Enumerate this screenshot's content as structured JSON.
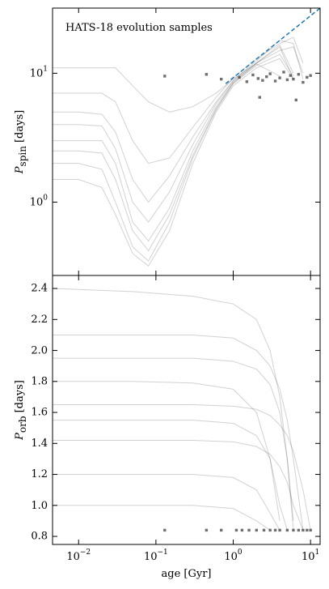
{
  "chart_data": [
    {
      "type": "line",
      "title": "HATS-18 evolution samples",
      "ylabel": {
        "text": "P",
        "sub": "spin",
        "unit": "[days]"
      },
      "xscale": "log",
      "yscale": "log",
      "xlim": [
        0.0046,
        13.3
      ],
      "ylim": [
        0.27,
        32
      ],
      "xticks": [
        {
          "value": 0.01,
          "label": "10",
          "exponent": "−2"
        },
        {
          "value": 0.1,
          "label": "10",
          "exponent": "−1"
        },
        {
          "value": 1,
          "label": "10",
          "exponent": "0"
        },
        {
          "value": 10,
          "label": "10",
          "exponent": "1"
        }
      ],
      "yticks": [
        {
          "value": 1,
          "label": "10",
          "exponent": "0"
        },
        {
          "value": 10,
          "label": "10",
          "exponent": "1"
        }
      ],
      "line_color": "#000000",
      "line_alpha": 0.18,
      "series": [
        {
          "x": [
            0.0046,
            0.01,
            0.02,
            0.03,
            0.05,
            0.08,
            0.15,
            0.3,
            0.6,
            1,
            2,
            4,
            6,
            8
          ],
          "values": [
            3.0,
            3.0,
            3.0,
            2.0,
            0.7,
            0.5,
            0.9,
            2.5,
            5.5,
            8.5,
            12,
            16,
            9,
            null
          ]
        },
        {
          "x": [
            0.0046,
            0.01,
            0.02,
            0.03,
            0.05,
            0.08,
            0.15,
            0.3,
            0.6,
            1,
            2,
            4,
            6,
            8
          ],
          "values": [
            5.0,
            5.0,
            4.8,
            3.5,
            1.5,
            1.0,
            1.6,
            3.2,
            6.0,
            8.8,
            12.5,
            18,
            17,
            9
          ]
        },
        {
          "x": [
            0.0046,
            0.01,
            0.02,
            0.03,
            0.05,
            0.08,
            0.15,
            0.3,
            0.6,
            1,
            2,
            4,
            6,
            8
          ],
          "values": [
            11,
            11,
            11,
            11,
            8,
            6,
            5,
            5.5,
            7,
            9,
            12,
            15,
            16,
            10
          ]
        },
        {
          "x": [
            0.0046,
            0.01,
            0.02,
            0.03,
            0.05,
            0.08,
            0.15,
            0.3,
            0.6,
            1,
            2,
            4,
            6,
            8
          ],
          "values": [
            2.0,
            2.0,
            1.8,
            1.0,
            0.45,
            0.35,
            0.7,
            2.2,
            5.2,
            8.3,
            11.5,
            14,
            9.5,
            null
          ]
        },
        {
          "x": [
            0.0046,
            0.01,
            0.02,
            0.03,
            0.05,
            0.08,
            0.15,
            0.3,
            0.6,
            1,
            2,
            4,
            6,
            8
          ],
          "values": [
            1.5,
            1.5,
            1.3,
            0.8,
            0.4,
            0.32,
            0.6,
            2.0,
            5.0,
            8.0,
            11,
            13,
            9,
            null
          ]
        },
        {
          "x": [
            0.0046,
            0.01,
            0.02,
            0.03,
            0.05,
            0.08,
            0.15,
            0.3,
            0.6,
            1,
            2,
            4,
            6,
            8
          ],
          "values": [
            7,
            7,
            7,
            6,
            3,
            2,
            2.2,
            3.8,
            6.5,
            9.2,
            13,
            17,
            19,
            12
          ]
        },
        {
          "x": [
            0.0046,
            0.01,
            0.02,
            0.03,
            0.05,
            0.08,
            0.15,
            0.3,
            0.6,
            1,
            2,
            4,
            6,
            8
          ],
          "values": [
            4,
            4,
            3.9,
            2.6,
            1.0,
            0.7,
            1.2,
            2.8,
            5.8,
            8.7,
            12,
            16.5,
            10,
            null
          ]
        },
        {
          "x": [
            0.0046,
            0.01,
            0.02,
            0.03,
            0.05,
            0.08,
            0.15,
            0.3,
            0.6,
            1,
            2,
            4,
            6,
            8
          ],
          "values": [
            2.5,
            2.5,
            2.4,
            1.5,
            0.6,
            0.42,
            0.8,
            2.3,
            5.3,
            8.4,
            11.8,
            9.5,
            null,
            null
          ]
        }
      ],
      "points": {
        "color": "#333333",
        "x": [
          0.13,
          0.45,
          0.7,
          1.2,
          1.5,
          1.8,
          2.1,
          2.4,
          2.7,
          3.0,
          3.5,
          4.0,
          4.5,
          5.0,
          5.5,
          6.0,
          7.0,
          8.0,
          9.0,
          10.0,
          2.2,
          6.5
        ],
        "values": [
          9.5,
          9.8,
          9.0,
          9.3,
          8.6,
          9.7,
          9.1,
          8.8,
          9.4,
          9.9,
          8.7,
          9.2,
          10.2,
          8.9,
          9.6,
          9.0,
          9.8,
          8.5,
          9.3,
          9.6,
          6.5,
          6.2
        ]
      },
      "reference": {
        "color": "#1f77b4",
        "x": [
          0.8,
          13.3
        ],
        "values": [
          8.3,
          32
        ]
      }
    },
    {
      "type": "line",
      "xlabel": "age [Gyr]",
      "ylabel": {
        "text": "P",
        "sub": "orb",
        "unit": "[days]"
      },
      "xscale": "log",
      "yscale": "linear",
      "xlim": [
        0.0046,
        13.3
      ],
      "ylim": [
        0.748,
        2.484
      ],
      "xticks": [
        {
          "value": 0.01,
          "label": "10",
          "exponent": "−2"
        },
        {
          "value": 0.1,
          "label": "10",
          "exponent": "−1"
        },
        {
          "value": 1,
          "label": "10",
          "exponent": "0"
        },
        {
          "value": 10,
          "label": "10",
          "exponent": "1"
        }
      ],
      "yticks": [
        0.8,
        {
          "value": 1,
          "label": "1.0"
        },
        1.2,
        1.4,
        1.6,
        1.8,
        {
          "value": 2,
          "label": "2.0"
        },
        2.2,
        2.4
      ],
      "line_color": "#000000",
      "line_alpha": 0.18,
      "series": [
        {
          "x": [
            0.0046,
            0.05,
            0.3,
            1,
            2,
            3,
            4,
            5,
            6,
            8,
            10
          ],
          "values": [
            2.4,
            2.38,
            2.35,
            2.3,
            2.2,
            2.0,
            1.7,
            1.3,
            0.84,
            null,
            null
          ]
        },
        {
          "x": [
            0.0046,
            0.05,
            0.3,
            1,
            2,
            3,
            4,
            5,
            6,
            8,
            10
          ],
          "values": [
            1.95,
            1.95,
            1.95,
            1.93,
            1.88,
            1.78,
            1.6,
            1.3,
            0.9,
            null,
            null
          ]
        },
        {
          "x": [
            0.0046,
            0.05,
            0.3,
            1,
            2,
            3,
            4,
            5,
            6,
            8,
            10
          ],
          "values": [
            1.55,
            1.55,
            1.55,
            1.53,
            1.45,
            1.3,
            1.0,
            0.84,
            null,
            null,
            null
          ]
        },
        {
          "x": [
            0.0046,
            0.05,
            0.3,
            1,
            2,
            3,
            4,
            5,
            6,
            8,
            10
          ],
          "values": [
            1.8,
            1.8,
            1.79,
            1.75,
            1.6,
            1.3,
            0.9,
            null,
            null,
            null,
            null
          ]
        },
        {
          "x": [
            0.0046,
            0.05,
            0.3,
            1,
            2,
            3,
            4,
            5,
            6,
            8,
            10
          ],
          "values": [
            1.42,
            1.42,
            1.42,
            1.41,
            1.38,
            1.33,
            1.25,
            1.15,
            1.0,
            0.84,
            null
          ]
        },
        {
          "x": [
            0.0046,
            0.05,
            0.3,
            1,
            2,
            3,
            4,
            5,
            6,
            8,
            10
          ],
          "values": [
            1.2,
            1.2,
            1.2,
            1.18,
            1.1,
            0.95,
            0.84,
            null,
            null,
            null,
            null
          ]
        },
        {
          "x": [
            0.0046,
            0.05,
            0.3,
            1,
            2,
            3,
            4,
            5,
            6,
            8,
            10
          ],
          "values": [
            2.1,
            2.1,
            2.1,
            2.08,
            2.0,
            1.9,
            1.75,
            1.55,
            1.3,
            0.84,
            null
          ]
        },
        {
          "x": [
            0.0046,
            0.05,
            0.3,
            1,
            2,
            3,
            4,
            5,
            6,
            8,
            10
          ],
          "values": [
            1.0,
            1.0,
            1.0,
            0.98,
            0.9,
            0.84,
            null,
            null,
            null,
            null,
            null
          ]
        },
        {
          "x": [
            0.0046,
            0.05,
            0.3,
            1,
            2,
            3,
            4,
            5,
            6,
            8,
            10
          ],
          "values": [
            1.65,
            1.65,
            1.65,
            1.64,
            1.62,
            1.58,
            1.52,
            1.45,
            1.35,
            1.1,
            0.84
          ]
        }
      ],
      "points": {
        "color": "#333333",
        "x": [
          0.13,
          0.45,
          0.7,
          1.1,
          1.3,
          1.6,
          2.0,
          2.5,
          3.0,
          3.5,
          4.0,
          5.0,
          6.0,
          7.0,
          8.0,
          9.0,
          10.0
        ],
        "values": [
          0.84,
          0.84,
          0.84,
          0.84,
          0.84,
          0.84,
          0.84,
          0.84,
          0.84,
          0.84,
          0.84,
          0.84,
          0.84,
          0.84,
          0.84,
          0.84,
          0.84
        ]
      }
    }
  ]
}
